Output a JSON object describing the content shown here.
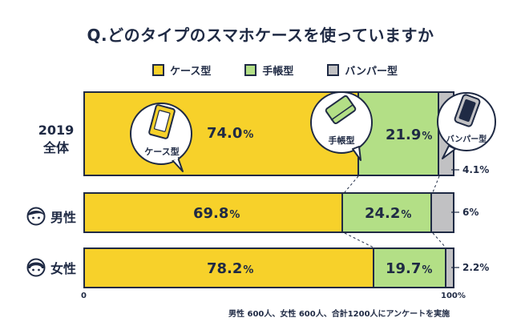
{
  "title": "Q.どのタイプのスマホケースを使っていますか",
  "colors": {
    "case": "#f7d12a",
    "notebook": "#b3df86",
    "bumper": "#c1c1c3",
    "outline": "#1f2a44"
  },
  "chart_data": {
    "type": "bar",
    "stacked": true,
    "orientation": "horizontal",
    "categories": [
      "2019\n全体",
      "男性",
      "女性"
    ],
    "series": [
      {
        "name": "ケース型",
        "values": [
          74.0,
          69.8,
          78.2
        ]
      },
      {
        "name": "手帳型",
        "values": [
          21.9,
          24.2,
          19.7
        ]
      },
      {
        "name": "バンパー型",
        "values": [
          4.1,
          6,
          2.2
        ]
      }
    ],
    "labels": [
      [
        "74.0",
        "21.9",
        "4.1"
      ],
      [
        "69.8",
        "24.2",
        "6"
      ],
      [
        "78.2",
        "19.7",
        "2.2"
      ]
    ],
    "unit": "%",
    "xlim": [
      0,
      100
    ],
    "xticks": [
      "0",
      "100%"
    ],
    "legend_position": "top-center"
  },
  "rows": {
    "all_year": "2019",
    "all_label": "全体",
    "male": "男性",
    "female": "女性"
  },
  "bubbles": {
    "case": "ケース型",
    "notebook": "手帳型",
    "bumper": "バンパー型"
  },
  "note": "男性 600人、女性 600人、合計1200人にアンケートを実施"
}
